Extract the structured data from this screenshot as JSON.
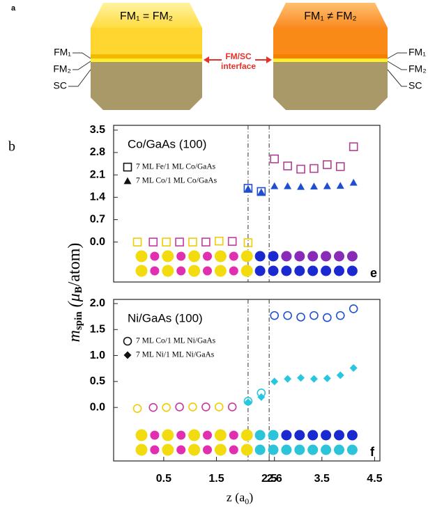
{
  "panel_a": {
    "label": "a",
    "left_title": "FM₁ = FM₂",
    "right_title": "FM₁ ≠ FM₂",
    "left_layers": [
      "FM₁",
      "FM₂",
      "SC"
    ],
    "right_layers": [
      "FM₁",
      "FM₂",
      "SC"
    ],
    "interface_label": [
      "FM/SC",
      "interface"
    ]
  },
  "panel_b_label": "b",
  "y_label": [
    "m",
    "spin",
    " (μ",
    "B",
    "/atom)"
  ],
  "chart_data": [
    {
      "type": "scatter",
      "title": "Co/GaAs (100)",
      "panel": "e",
      "legend": "upper left",
      "xlim": [
        -0.45,
        4.6
      ],
      "ylim": [
        -1.25,
        3.65
      ],
      "yticks": [
        {
          "value": 0,
          "label": "0.0"
        },
        0.7,
        1.4,
        2.1,
        2.8,
        3.5
      ],
      "vlines": [
        2.1,
        2.5
      ],
      "series": [
        {
          "name": "7 ML Fe/1 ML Co/GaAs",
          "marker": "square",
          "x": [
            0,
            0.3,
            0.55,
            0.8,
            1.05,
            1.3,
            1.55,
            1.8,
            2.1,
            2.1,
            2.35,
            2.6,
            2.85,
            3.1,
            3.35,
            3.6,
            3.85,
            4.1
          ],
          "values": [
            0,
            0,
            0,
            0,
            0,
            0,
            0.03,
            0.02,
            -0.02,
            1.68,
            1.58,
            2.6,
            2.38,
            2.28,
            2.3,
            2.42,
            2.36,
            2.98
          ],
          "colors": [
            "#f0cc00",
            "#c8389e",
            "#f0cc00",
            "#c8389e",
            "#f0cc00",
            "#c8389e",
            "#f0cc00",
            "#c8389e",
            "#f0cc00",
            "#1f4fd0",
            "#1f4fd0",
            "#b0408f",
            "#b0408f",
            "#b0408f",
            "#b0408f",
            "#b0408f",
            "#b0408f",
            "#b0408f"
          ]
        },
        {
          "name": "7 ML Co/1 ML Co/GaAs",
          "marker": "triangle",
          "x": [
            2.1,
            2.35,
            2.6,
            2.85,
            3.1,
            3.35,
            3.6,
            3.85,
            4.1
          ],
          "values": [
            1.66,
            1.56,
            1.75,
            1.75,
            1.73,
            1.74,
            1.75,
            1.76,
            1.86
          ],
          "colors": [
            "#1f4fd0",
            "#1f4fd0",
            "#1f4fd0",
            "#1f4fd0",
            "#1f4fd0",
            "#1f4fd0",
            "#1f4fd0",
            "#1f4fd0",
            "#1f4fd0"
          ]
        }
      ]
    },
    {
      "type": "scatter",
      "title": "Ni/GaAs (100)",
      "panel": "f",
      "legend": "upper left",
      "x_label": [
        "z (a",
        "0",
        ")"
      ],
      "xlim": [
        -0.45,
        4.6
      ],
      "ylim": [
        -1.03,
        2.08
      ],
      "xticks": [
        0.5,
        1.5,
        2.5,
        2.6,
        3.5,
        4.5
      ],
      "yticks": [
        {
          "value": 0,
          "label": "0.0"
        },
        0.5,
        {
          "value": 1,
          "label": "1.0"
        },
        1.5,
        {
          "value": 2,
          "label": "2.0"
        }
      ],
      "vlines": [
        2.1,
        2.5
      ],
      "series": [
        {
          "name": "7 ML Co/1 ML Ni/GaAs",
          "marker": "circle",
          "x": [
            0,
            0.3,
            0.55,
            0.8,
            1.05,
            1.3,
            1.55,
            1.8,
            2.1,
            2.35,
            2.6,
            2.85,
            3.1,
            3.35,
            3.6,
            3.85,
            4.1
          ],
          "values": [
            -0.02,
            0,
            0,
            0.01,
            0.01,
            0.01,
            0.01,
            0.01,
            0.12,
            0.28,
            1.77,
            1.77,
            1.74,
            1.77,
            1.73,
            1.77,
            1.9
          ],
          "colors": [
            "#f0cc00",
            "#c8389e",
            "#f0cc00",
            "#c8389e",
            "#f0cc00",
            "#c8389e",
            "#f0cc00",
            "#c8389e",
            "#29c6e0",
            "#29c6e0",
            "#1f4fd0",
            "#1f4fd0",
            "#1f4fd0",
            "#1f4fd0",
            "#1f4fd0",
            "#1f4fd0",
            "#1f4fd0"
          ]
        },
        {
          "name": "7 ML Ni/1 ML Ni/GaAs",
          "marker": "diamond",
          "x": [
            2.1,
            2.35,
            2.6,
            2.85,
            3.1,
            3.35,
            3.6,
            3.85,
            4.1
          ],
          "values": [
            0.1,
            0.2,
            0.5,
            0.55,
            0.57,
            0.55,
            0.56,
            0.62,
            0.76
          ],
          "colors": [
            "#29c6e0",
            "#29c6e0",
            "#29c6e0",
            "#29c6e0",
            "#29c6e0",
            "#29c6e0",
            "#29c6e0",
            "#29c6e0",
            "#29c6e0"
          ]
        }
      ]
    }
  ]
}
